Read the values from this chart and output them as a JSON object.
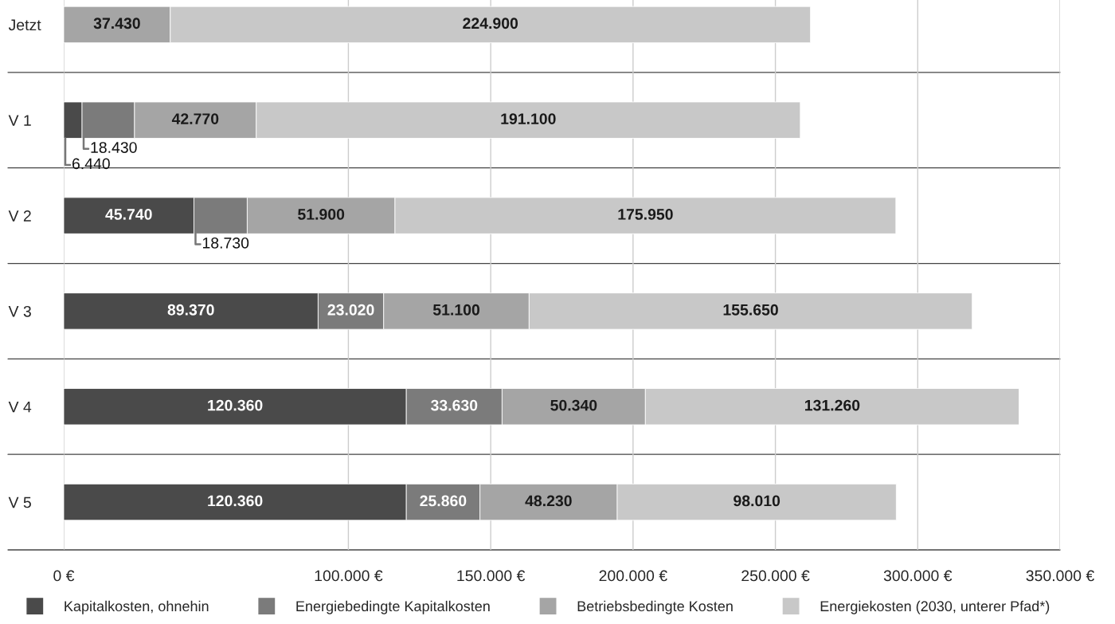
{
  "chart_data": {
    "type": "bar",
    "orientation": "horizontal",
    "stacked": true,
    "categories": [
      "Jetzt",
      "V 1",
      "V 2",
      "V 3",
      "V 4",
      "V 5"
    ],
    "series": [
      {
        "name": "Kapitalkosten, ohnehin",
        "color": "#4a4a4a",
        "values": [
          null,
          6440,
          45740,
          89370,
          120360,
          120360
        ],
        "value_labels": [
          null,
          "6.440",
          "45.740",
          "89.370",
          "120.360",
          "120.360"
        ]
      },
      {
        "name": "Energiebedingte Kapitalkosten",
        "color": "#7b7b7b",
        "values": [
          null,
          18430,
          18730,
          23020,
          33630,
          25860
        ],
        "value_labels": [
          null,
          "18.430",
          "18.730",
          "23.020",
          "33.630",
          "25.860"
        ]
      },
      {
        "name": "Betriebsbedingte Kosten",
        "color": "#a5a5a5",
        "values": [
          37430,
          42770,
          51900,
          51100,
          50340,
          48230
        ],
        "value_labels": [
          "37.430",
          "42.770",
          "51.900",
          "51.100",
          "50.340",
          "48.230"
        ]
      },
      {
        "name": "Energiekosten (2030, unterer Pfad*)",
        "color": "#c8c8c8",
        "values": [
          224900,
          191100,
          175950,
          155650,
          131260,
          98010
        ],
        "value_labels": [
          "224.900",
          "191.100",
          "175.950",
          "155.650",
          "131.260",
          "98.010"
        ]
      }
    ],
    "xlim": [
      0,
      350000
    ],
    "xticks": [
      {
        "value": 0,
        "label": "0 €"
      },
      {
        "value": 100000,
        "label": "100.000 €"
      },
      {
        "value": 150000,
        "label": "150.000 €"
      },
      {
        "value": 200000,
        "label": "200.000 €"
      },
      {
        "value": 250000,
        "label": "250.000 €"
      },
      {
        "value": 300000,
        "label": "300.000 €"
      },
      {
        "value": 350000,
        "label": "350.000 €"
      }
    ],
    "grid": "x",
    "legend": "bottom"
  }
}
